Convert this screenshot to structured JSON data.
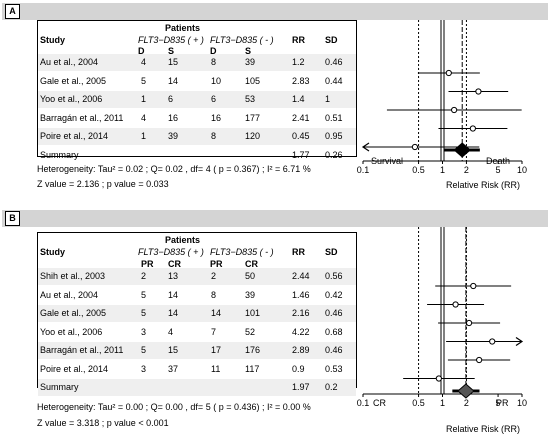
{
  "panels": [
    {
      "label": "A",
      "patients_header": "Patients",
      "study_header": "Study",
      "group_pos": "FLT3−D835 ( + )",
      "group_neg": "FLT3−D835 ( - )",
      "rr_header": "RR",
      "sd_header": "SD",
      "sub_headers": [
        "D",
        "S",
        "D",
        "S"
      ],
      "rows": [
        {
          "study": "Au et al., 2004",
          "a": "4",
          "b": "15",
          "c": "8",
          "d": "39",
          "rr": "1.2",
          "sd": "0.46"
        },
        {
          "study": "Gale et al., 2005",
          "a": "5",
          "b": "14",
          "c": "10",
          "d": "105",
          "rr": "2.83",
          "sd": "0.44"
        },
        {
          "study": "Yoo et al., 2006",
          "a": "1",
          "b": "6",
          "c": "6",
          "d": "53",
          "rr": "1.4",
          "sd": "1"
        },
        {
          "study": "Barragán et al., 2011",
          "a": "4",
          "b": "16",
          "c": "16",
          "d": "177",
          "rr": "2.41",
          "sd": "0.51"
        },
        {
          "study": "Poire et al., 2014",
          "a": "1",
          "b": "39",
          "c": "8",
          "d": "120",
          "rr": "0.45",
          "sd": "0.95"
        }
      ],
      "summary": {
        "study": "Summary",
        "rr": "1.77",
        "sd": "0.26"
      },
      "heterogeneity": "Heterogeneity: Tau² = 0.02 ; Q= 0.02 , df= 4  ( p = 0.367) ; I² = 6.71 %",
      "zvalue": "Z value =  2.136 ;  p   value = 0.033",
      "left_label": "Survival",
      "right_label": "Death"
    },
    {
      "label": "B",
      "patients_header": "Patients",
      "study_header": "Study",
      "group_pos": "FLT3−D835 ( + )",
      "group_neg": "FLT3−D835 ( - )",
      "rr_header": "RR",
      "sd_header": "SD",
      "sub_headers": [
        "PR",
        "CR",
        "PR",
        "CR"
      ],
      "rows": [
        {
          "study": "Shih et al., 2003",
          "a": "2",
          "b": "13",
          "c": "2",
          "d": "50",
          "rr": "2.44",
          "sd": "0.56"
        },
        {
          "study": "Au et al., 2004",
          "a": "5",
          "b": "14",
          "c": "8",
          "d": "39",
          "rr": "1.46",
          "sd": "0.42"
        },
        {
          "study": "Gale et al., 2005",
          "a": "5",
          "b": "14",
          "c": "14",
          "d": "101",
          "rr": "2.16",
          "sd": "0.46"
        },
        {
          "study": "Yoo et al., 2006",
          "a": "3",
          "b": "4",
          "c": "7",
          "d": "52",
          "rr": "4.22",
          "sd": "0.68"
        },
        {
          "study": "Barragán et al., 2011",
          "a": "5",
          "b": "15",
          "c": "17",
          "d": "176",
          "rr": "2.89",
          "sd": "0.46"
        },
        {
          "study": "Poire et al., 2014",
          "a": "3",
          "b": "37",
          "c": "11",
          "d": "117",
          "rr": "0.9",
          "sd": "0.53"
        }
      ],
      "summary": {
        "study": "Summary",
        "rr": "1.97",
        "sd": "0.2"
      },
      "heterogeneity": "Heterogeneity: Tau² = 0.00 ; Q= 0.00 , df= 5  ( p = 0.436) ; I² = 0.00 %",
      "zvalue": "Z value = 3.318 ;  p   value < 0.001",
      "left_label": "CR",
      "right_label": "PR"
    }
  ],
  "chart_data": [
    {
      "type": "forest",
      "x_scale": "log",
      "xlim": [
        0.1,
        10
      ],
      "ticks": [
        "0.1",
        "0.5",
        "1",
        "2",
        "5",
        "10"
      ],
      "xlabel": "Relative Risk (RR)",
      "points": [
        {
          "label": "Au et al., 2004",
          "rr": 1.2,
          "low": 0.49,
          "high": 2.95
        },
        {
          "label": "Gale et al., 2005",
          "rr": 2.83,
          "low": 1.19,
          "high": 6.7
        },
        {
          "label": "Yoo et al., 2006",
          "rr": 1.4,
          "low": 0.2,
          "high": 9.9
        },
        {
          "label": "Barragán et al., 2011",
          "rr": 2.41,
          "low": 0.89,
          "high": 6.55
        },
        {
          "label": "Poire et al., 2014",
          "rr": 0.45,
          "low": 0.07,
          "high": 2.9,
          "arrow_left": true
        }
      ],
      "summary": {
        "rr": 1.77,
        "low": 1.06,
        "high": 2.95
      }
    },
    {
      "type": "forest",
      "x_scale": "log",
      "xlim": [
        0.1,
        10
      ],
      "ticks": [
        "0.1",
        "0.5",
        "1",
        "2",
        "5",
        "10"
      ],
      "xlabel": "Relative Risk (RR)",
      "points": [
        {
          "label": "Shih et al., 2003",
          "rr": 2.44,
          "low": 0.81,
          "high": 7.3
        },
        {
          "label": "Au et al., 2004",
          "rr": 1.46,
          "low": 0.64,
          "high": 3.33
        },
        {
          "label": "Gale et al., 2005",
          "rr": 2.16,
          "low": 0.88,
          "high": 5.3
        },
        {
          "label": "Yoo et al., 2006",
          "rr": 4.22,
          "low": 1.11,
          "high": 16.0,
          "arrow_right": true
        },
        {
          "label": "Barragán et al., 2011",
          "rr": 2.89,
          "low": 1.17,
          "high": 7.1
        },
        {
          "label": "Poire et al., 2014",
          "rr": 0.9,
          "low": 0.32,
          "high": 2.54
        }
      ],
      "summary": {
        "rr": 1.97,
        "low": 1.33,
        "high": 2.92
      }
    }
  ]
}
